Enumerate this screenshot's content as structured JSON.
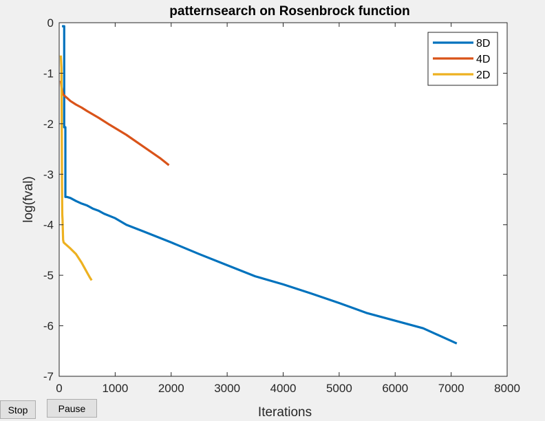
{
  "controls": {
    "stop_label": "Stop",
    "pause_label": "Pause"
  },
  "colors": {
    "background": "#f0f0f0",
    "axes_background": "#ffffff",
    "axis_color": "#262626",
    "series_8D": "#0072bd",
    "series_4D": "#d95319",
    "series_2D": "#edb120"
  },
  "chart_data": {
    "type": "line",
    "title": "patternsearch on Rosenbrock function",
    "xlabel": "Iterations",
    "ylabel": "log(fval)",
    "xlim": [
      0,
      8000
    ],
    "ylim": [
      -7,
      0
    ],
    "xticks": [
      0,
      1000,
      2000,
      3000,
      4000,
      5000,
      6000,
      7000,
      8000
    ],
    "yticks": [
      0,
      -1,
      -2,
      -3,
      -4,
      -5,
      -6,
      -7
    ],
    "grid": false,
    "legend_position": "top-right",
    "series": [
      {
        "name": "8D",
        "color": "#0072bd",
        "x": [
          50,
          90,
          90,
          100,
          110,
          110,
          140,
          200,
          300,
          400,
          500,
          600,
          700,
          800,
          1000,
          1200,
          1500,
          2000,
          2500,
          3000,
          3500,
          4000,
          4500,
          5000,
          5500,
          6000,
          6500,
          7000,
          7100
        ],
        "y": [
          -0.07,
          -0.07,
          -2.07,
          -2.07,
          -2.07,
          -3.45,
          -3.45,
          -3.47,
          -3.53,
          -3.58,
          -3.62,
          -3.68,
          -3.72,
          -3.78,
          -3.87,
          -4.0,
          -4.13,
          -4.35,
          -4.58,
          -4.8,
          -5.02,
          -5.18,
          -5.36,
          -5.55,
          -5.75,
          -5.9,
          -6.05,
          -6.3,
          -6.35
        ]
      },
      {
        "name": "4D",
        "color": "#d95319",
        "x": [
          30,
          45,
          60,
          70,
          100,
          150,
          200,
          300,
          400,
          500,
          700,
          900,
          1200,
          1500,
          1800,
          1960
        ],
        "y": [
          -1.15,
          -1.3,
          -1.38,
          -1.42,
          -1.45,
          -1.5,
          -1.55,
          -1.62,
          -1.68,
          -1.75,
          -1.88,
          -2.02,
          -2.22,
          -2.45,
          -2.68,
          -2.82
        ]
      },
      {
        "name": "2D",
        "color": "#edb120",
        "x": [
          30,
          40,
          45,
          50,
          55,
          60,
          70,
          80,
          100,
          150,
          200,
          300,
          400,
          500,
          550,
          580
        ],
        "y": [
          -0.65,
          -0.9,
          -1.8,
          -3.2,
          -3.8,
          -3.9,
          -4.3,
          -4.35,
          -4.37,
          -4.42,
          -4.47,
          -4.58,
          -4.75,
          -4.95,
          -5.05,
          -5.1
        ]
      }
    ]
  }
}
